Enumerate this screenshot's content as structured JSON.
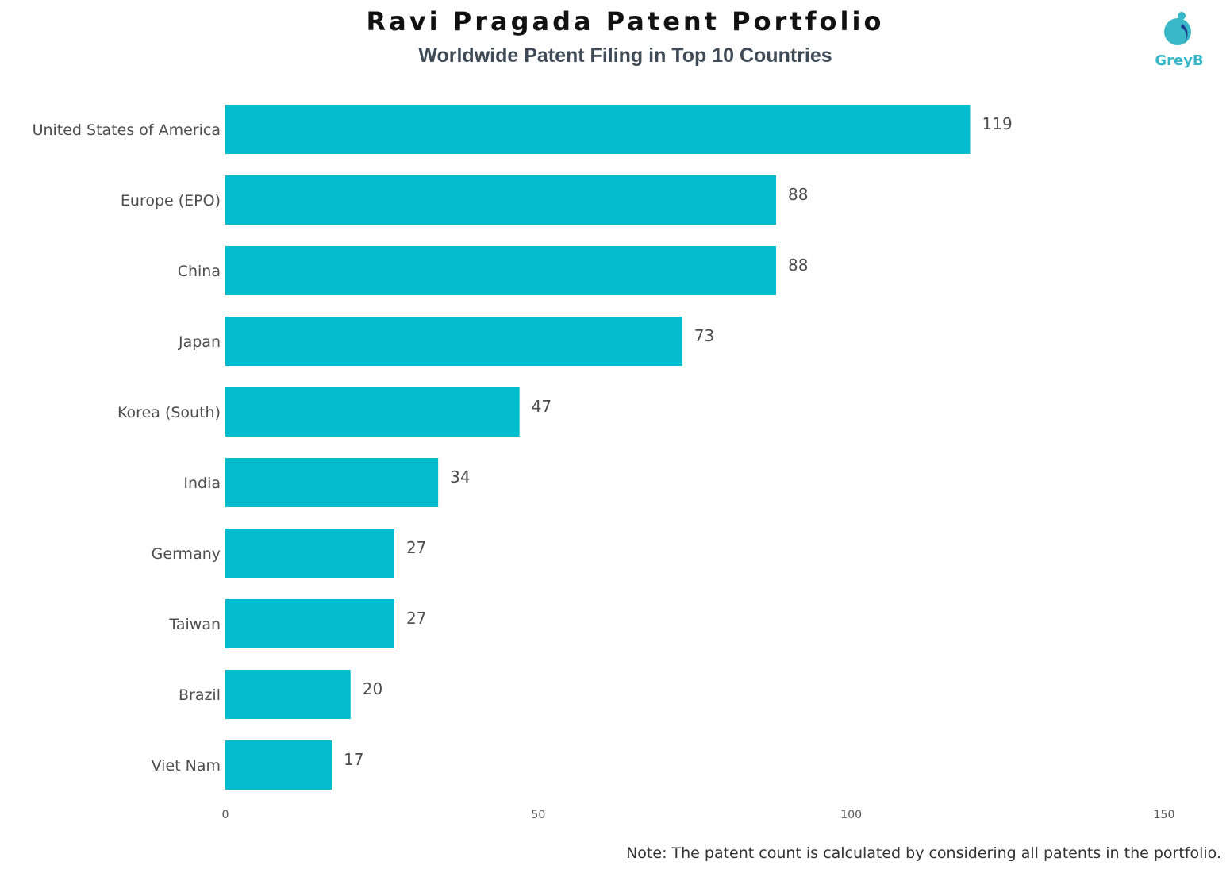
{
  "title": "Ravi Pragada Patent Portfolio",
  "subtitle": "Worldwide Patent Filing in Top 10 Countries",
  "logo": {
    "text": "GreyB",
    "icon": "greyb-logo-icon",
    "color": "#3ab7c7"
  },
  "note": "Note: The patent count is calculated by considering all patents in the portfolio.",
  "chart_data": {
    "type": "bar",
    "orientation": "horizontal",
    "title": "Worldwide Patent Filing in Top 10 Countries",
    "categories": [
      "United States of America",
      "Europe (EPO)",
      "China",
      "Japan",
      "Korea (South)",
      "India",
      "Germany",
      "Taiwan",
      "Brazil",
      "Viet Nam"
    ],
    "values": [
      119,
      88,
      88,
      73,
      47,
      34,
      27,
      27,
      20,
      17
    ],
    "xlim": [
      0,
      150
    ],
    "xticks": [
      0,
      50,
      100,
      150
    ],
    "grid": false,
    "data_labels": true,
    "bar_color": "#04bccd"
  }
}
